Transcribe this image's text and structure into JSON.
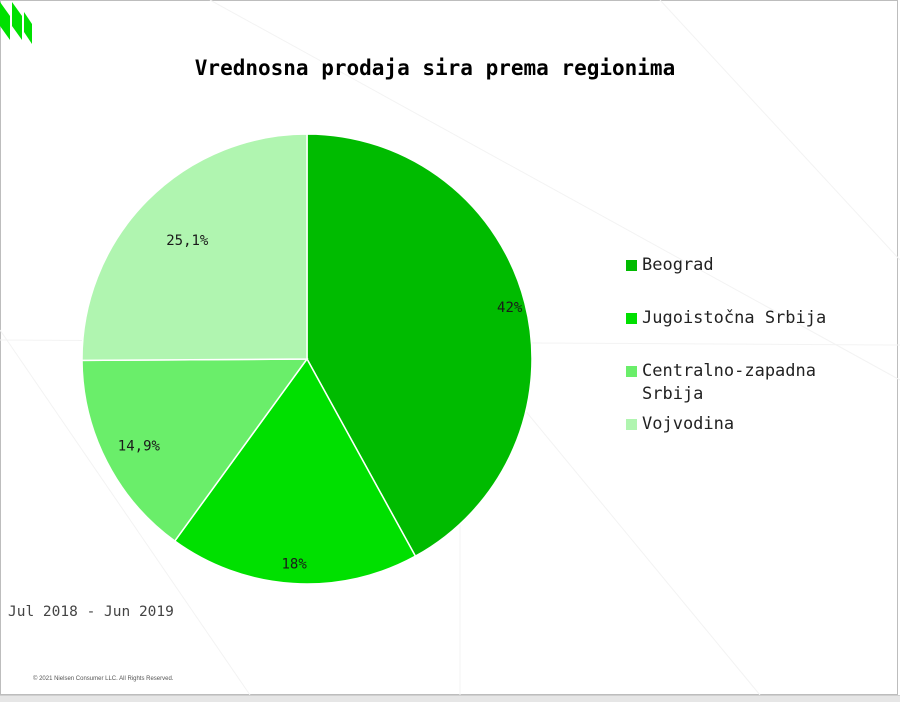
{
  "chart_data": {
    "type": "pie",
    "title": "Vrednosna prodaja sira prema regionima",
    "categories": [
      "Beograd",
      "Jugoistočna Srbija",
      "Centralno-zapadna Srbija",
      "Vojvodina"
    ],
    "values": [
      42,
      18,
      14.9,
      25.1
    ],
    "labels": [
      "42%",
      "18%",
      "14,9%",
      "25,1%"
    ],
    "colors": [
      "#00bb00",
      "#00e000",
      "#6aee6a",
      "#b0f5b0"
    ],
    "legend_position": "right"
  },
  "footer": {
    "period": "Jul 2018 - Jun 2019",
    "copyright": "© 2021 Nielsen Consumer LLC. All Rights Reserved."
  },
  "brand": {
    "logo_icon": "nielsen-logo-icon",
    "accent_color": "#00e000"
  }
}
